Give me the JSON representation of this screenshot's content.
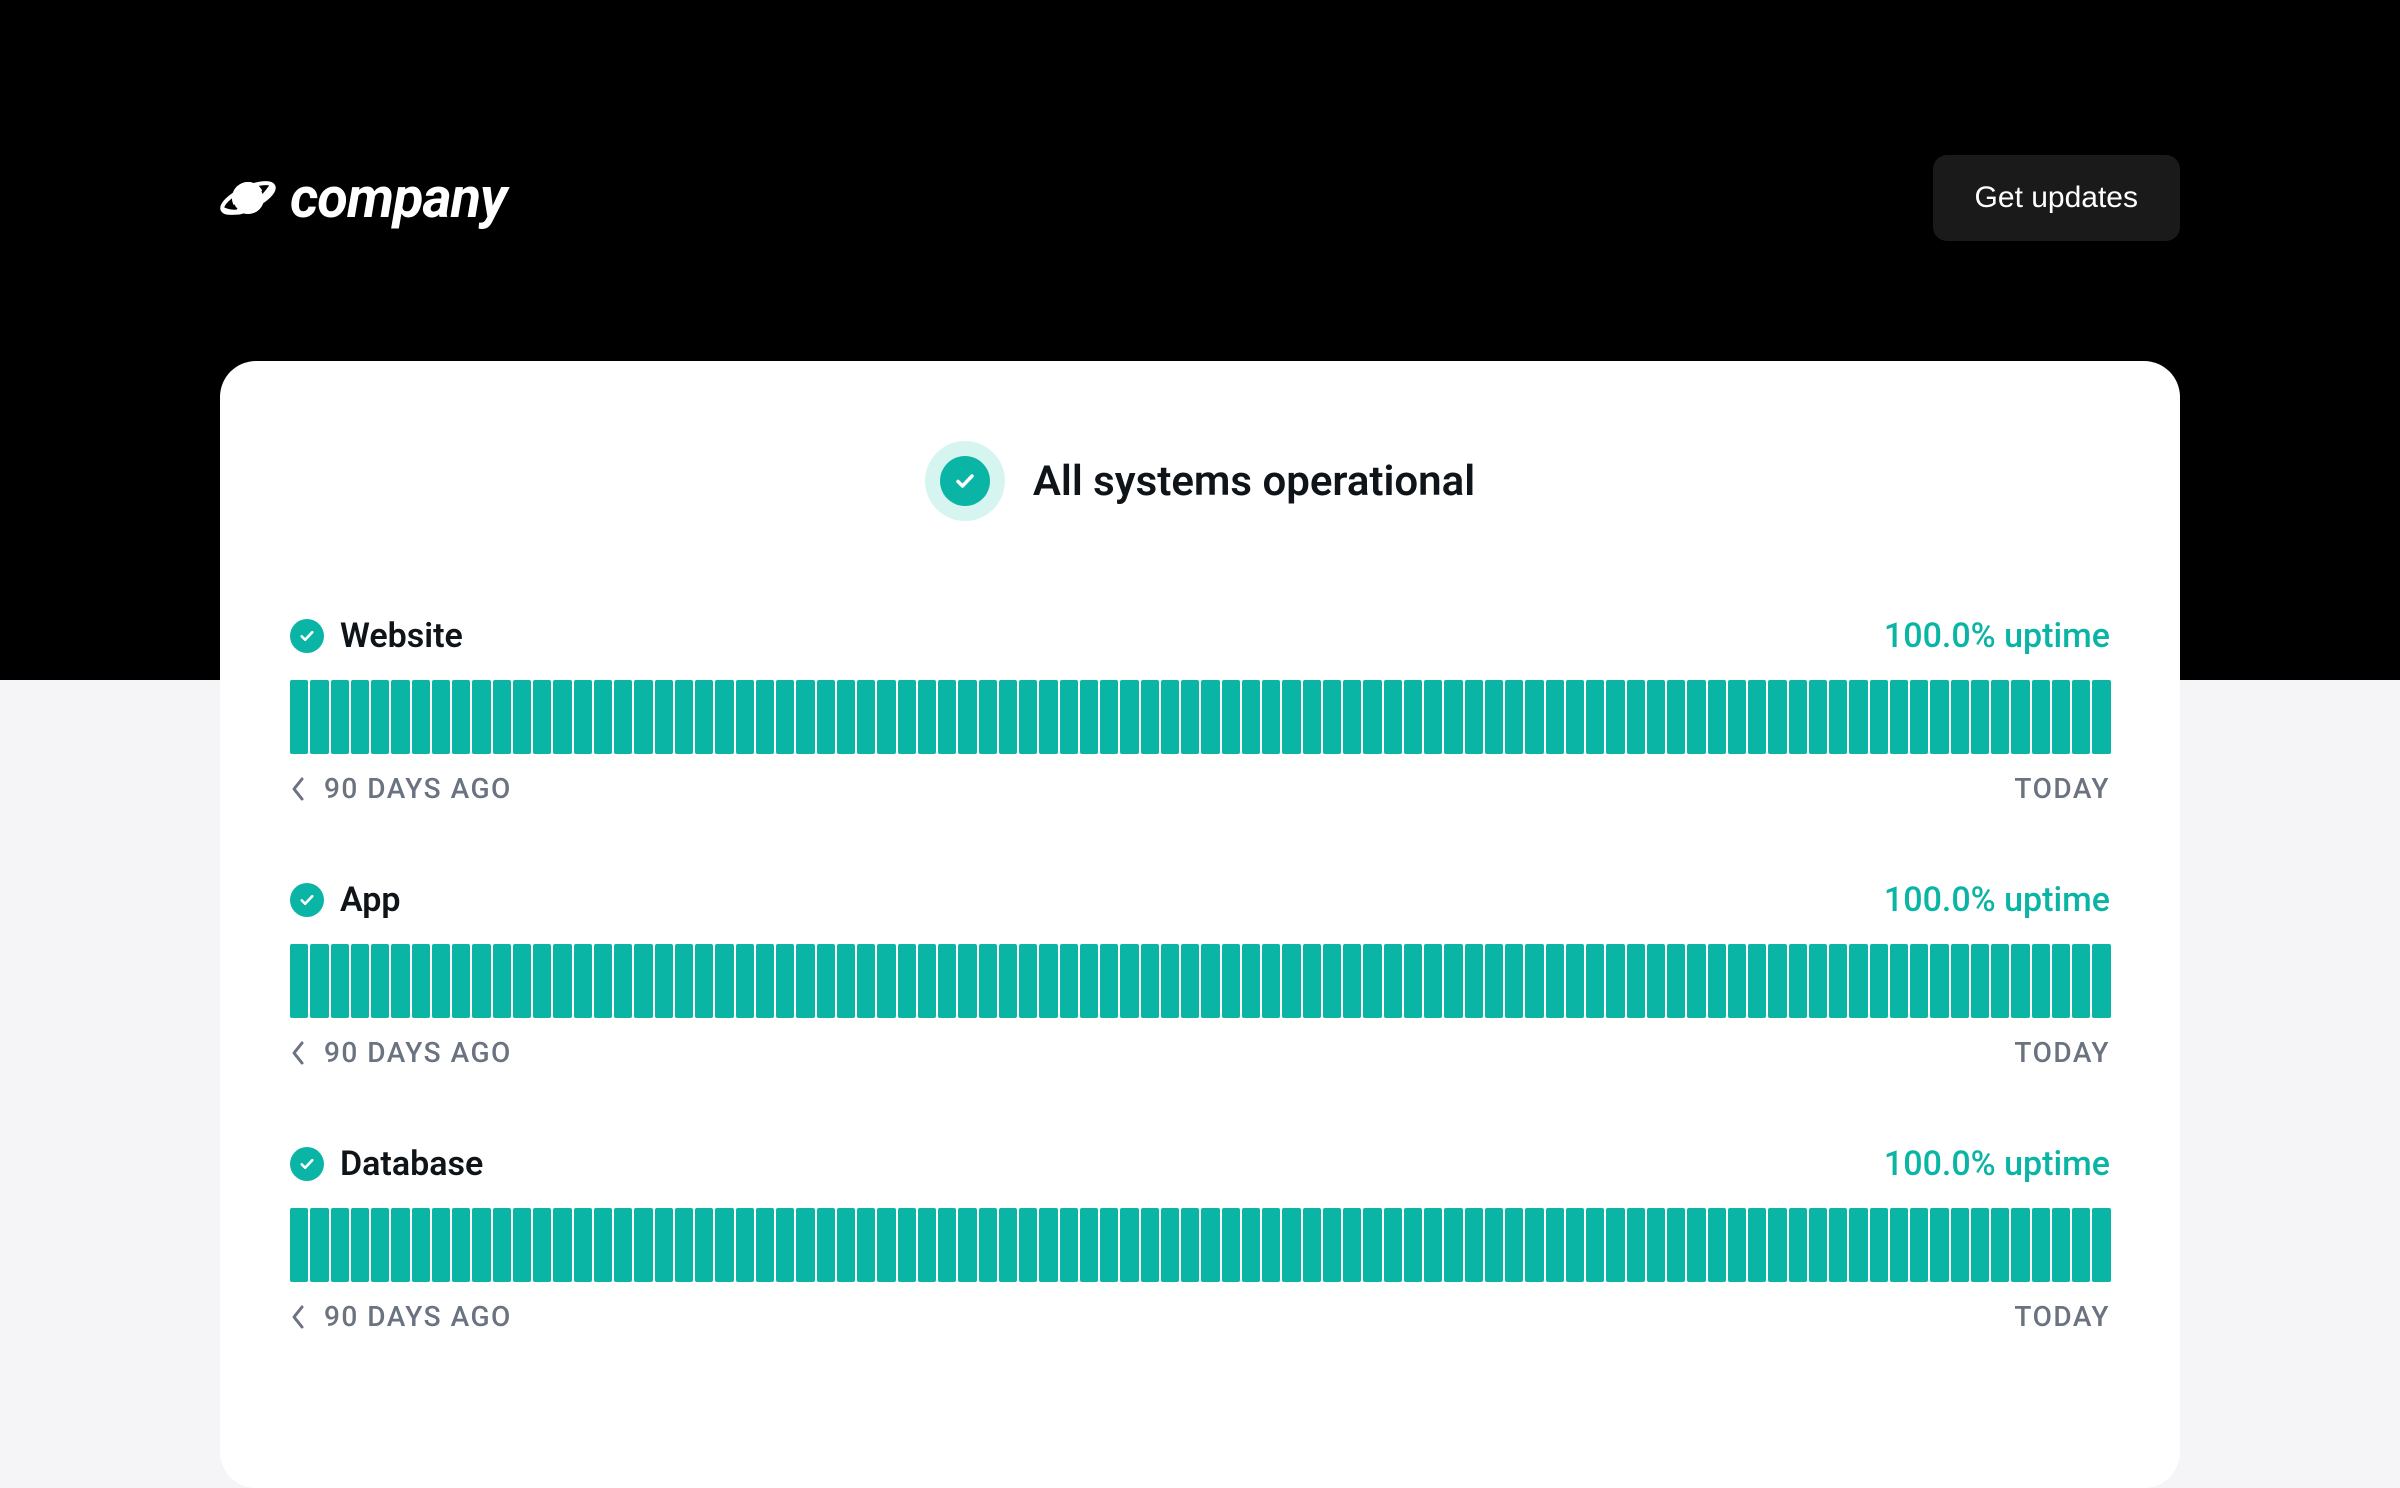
{
  "header": {
    "logo_text": "company",
    "get_updates_label": "Get updates"
  },
  "status": {
    "title": "All systems operational",
    "icon_color": "#0bb5a5",
    "icon_bg_color": "#d6f5f1"
  },
  "timeline": {
    "start_label": "90 DAYS AGO",
    "end_label": "TODAY",
    "segment_count": 90
  },
  "components": [
    {
      "name": "Website",
      "uptime_text": "100.0% uptime",
      "status_color": "#0bb5a5",
      "segments_color": "#0bb5a5"
    },
    {
      "name": "App",
      "uptime_text": "100.0% uptime",
      "status_color": "#0bb5a5",
      "segments_color": "#0bb5a5"
    },
    {
      "name": "Database",
      "uptime_text": "100.0% uptime",
      "status_color": "#0bb5a5",
      "segments_color": "#0bb5a5"
    }
  ],
  "colors": {
    "black": "#000000",
    "white": "#ffffff",
    "teal": "#0bb5a5",
    "teal_light": "#d6f5f1",
    "text_dark": "#0f1419",
    "text_muted": "#6b7280",
    "page_bg": "#f5f5f7",
    "button_bg": "#1a1a1a"
  }
}
